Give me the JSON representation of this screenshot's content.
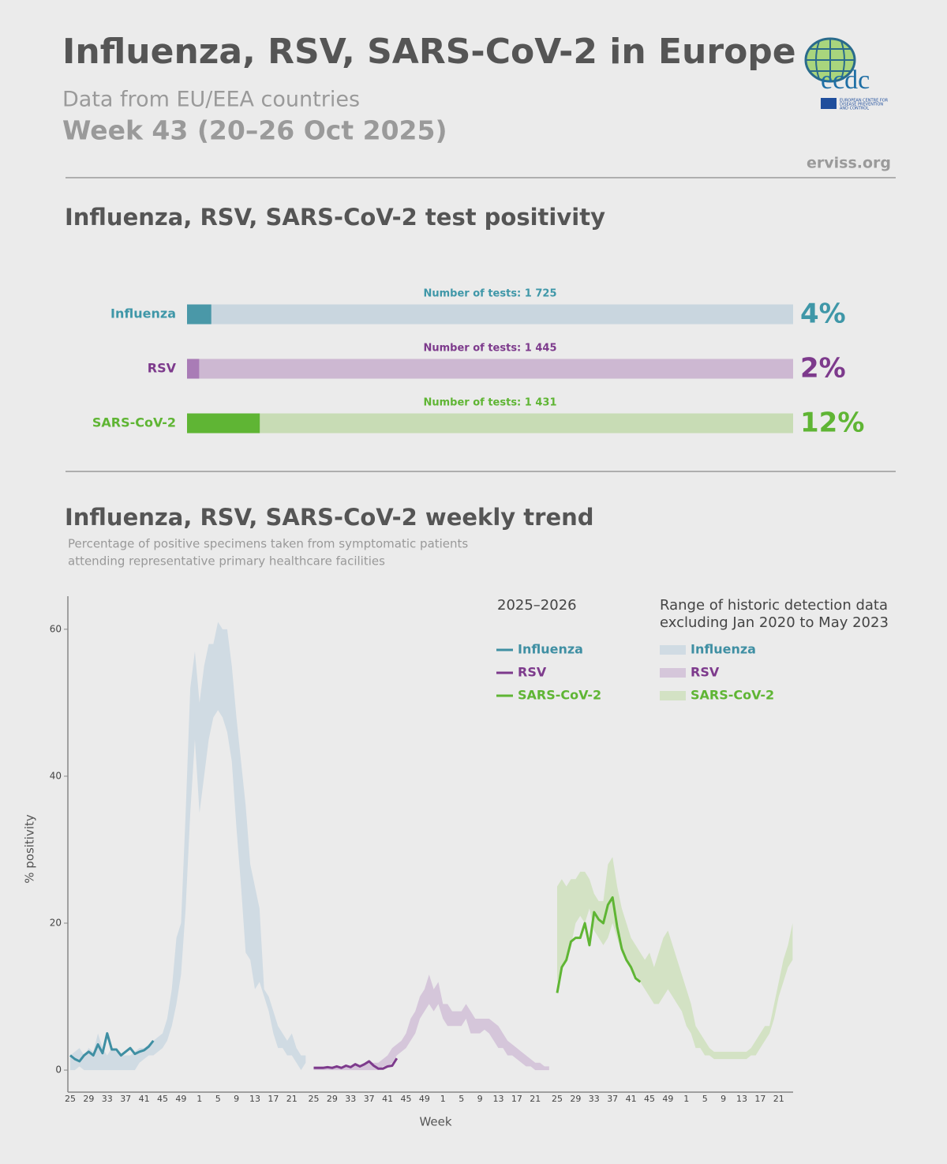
{
  "header": {
    "title": "Influenza, RSV, SARS-CoV-2 in Europe",
    "subtitle": "Data from EU/EEA countries",
    "week": "Week 43 (20–26 Oct 2025)",
    "source": "erviss.org",
    "logo": {
      "name": "ecdc",
      "text": [
        "EUROPEAN CENTRE FOR",
        "DISEASE PREVENTION",
        "AND CONTROL"
      ]
    }
  },
  "chart_data": [
    {
      "type": "hbar",
      "title": "Influenza, RSV, SARS-CoV-2 test positivity",
      "categories": [
        "Influenza",
        "RSV",
        "SARS-CoV-2"
      ],
      "values": [
        4,
        2,
        12
      ],
      "value_labels": [
        "4%",
        "2%",
        "12%"
      ],
      "test_labels": [
        "Number of tests: 1 725",
        "Number of tests: 1 445",
        "Number of tests: 1 431"
      ],
      "colors": [
        "#4a98a8",
        "#a97cb6",
        "#5fb534"
      ],
      "label_colors": [
        "#3f97a8",
        "#7d3a8c",
        "#5fb534"
      ],
      "track_colors": [
        "#c9d6df",
        "#cdb8d2",
        "#c8dcb5"
      ],
      "xlim": [
        0,
        100
      ]
    },
    {
      "type": "trend",
      "title": "Influenza, RSV, SARS-CoV-2 weekly trend",
      "subtitle": [
        "Percentage of positive specimens taken from symptomatic patients",
        "attending representative primary healthcare facilities"
      ],
      "ylabel": "% positivity",
      "xlabel": "Week",
      "legend_titles": [
        [
          "2025–2026"
        ],
        [
          "Range of historic detection data",
          "excluding Jan 2020 to May 2023"
        ]
      ],
      "categories": [
        "25",
        null,
        null,
        null,
        "29",
        null,
        null,
        null,
        "33",
        null,
        null,
        null,
        "37",
        null,
        null,
        null,
        "41",
        null,
        null,
        null,
        "45",
        null,
        null,
        null,
        "49",
        null,
        null,
        null,
        "1",
        null,
        null,
        null,
        "5",
        null,
        null,
        null,
        "9",
        null,
        null,
        null,
        "13",
        null,
        null,
        null,
        "17",
        null,
        null,
        null,
        "21",
        null,
        null,
        null
      ],
      "ylim": [
        -3,
        64.5
      ],
      "yticks": [
        0,
        20,
        40,
        60
      ],
      "grid": false,
      "series": [
        {
          "name": "Influenza",
          "color": "#3f8fa3",
          "range_color": "#d0dbe3",
          "values": [
            2,
            1.5,
            1.2,
            2,
            2.5,
            2,
            3.5,
            2.3,
            5,
            2.8,
            2.8,
            2,
            2.5,
            3,
            2.2,
            2.5,
            2.7,
            3.2,
            4,
            null,
            null,
            null,
            null,
            null,
            null,
            null,
            null,
            null,
            null,
            null,
            null,
            null,
            null,
            null,
            null,
            null,
            null,
            null,
            null,
            null,
            null,
            null,
            null,
            null,
            null,
            null,
            null,
            null,
            null,
            null,
            null,
            null
          ],
          "lower": [
            0,
            0,
            0.5,
            0,
            0,
            0,
            0,
            0,
            0,
            0,
            0,
            0,
            0,
            0,
            0,
            1,
            1.5,
            2,
            2,
            2.5,
            3,
            4,
            6,
            9,
            13,
            22,
            35,
            45,
            35,
            40,
            45,
            48,
            49,
            48,
            46,
            42,
            33,
            25,
            16,
            15,
            11,
            12,
            10,
            8,
            5,
            3,
            3,
            2,
            2,
            1,
            0,
            1
          ],
          "upper": [
            2,
            2.5,
            3,
            2,
            3,
            2.5,
            5,
            3,
            2,
            3,
            2.5,
            2,
            2,
            2,
            2.5,
            3,
            3,
            3.5,
            4,
            4.5,
            5,
            7,
            11,
            18,
            20,
            35,
            52,
            57,
            50,
            55,
            58,
            58,
            61,
            60,
            60,
            55,
            48,
            42,
            36,
            28,
            25,
            22,
            11,
            10,
            8,
            6,
            5,
            4,
            5,
            3,
            2,
            2
          ]
        },
        {
          "name": "RSV",
          "color": "#7d3a8c",
          "range_color": "#d5c6da",
          "values": [
            0.3,
            0.3,
            0.3,
            0.4,
            0.3,
            0.5,
            0.3,
            0.6,
            0.4,
            0.8,
            0.5,
            0.8,
            1.2,
            0.6,
            0.2,
            0.2,
            0.5,
            0.6,
            1.6,
            null,
            null,
            null,
            null,
            null,
            null,
            null,
            null,
            null,
            null,
            null,
            null,
            null,
            null,
            null,
            null,
            null,
            null,
            null,
            null,
            null,
            null,
            null,
            null,
            null,
            null,
            null,
            null,
            null,
            null,
            null,
            null,
            null
          ],
          "lower": [
            0,
            0,
            0,
            0,
            0,
            0,
            0,
            0,
            0,
            0,
            0,
            0,
            0,
            0,
            0,
            0.5,
            0.5,
            1,
            2,
            2.5,
            3,
            4,
            5,
            7,
            8,
            9,
            8,
            9,
            7,
            6,
            6,
            6,
            6,
            7,
            5,
            5,
            5,
            5.5,
            5,
            4,
            3,
            3,
            2,
            2,
            1.5,
            1,
            0.5,
            0.5,
            0,
            0,
            0,
            0
          ],
          "upper": [
            0.5,
            0.5,
            0.5,
            0.5,
            0.5,
            0.5,
            0.5,
            0.5,
            0.5,
            0.6,
            0.7,
            0.8,
            1,
            1,
            1,
            1.5,
            2,
            3,
            3.5,
            4,
            5,
            7,
            8,
            10,
            11,
            13,
            11,
            12,
            9,
            9,
            8,
            8,
            8,
            9,
            8,
            7,
            7,
            7,
            7,
            6.5,
            6,
            5,
            4,
            3.5,
            3,
            2.5,
            2,
            1.5,
            1,
            1,
            0.5,
            0.5
          ]
        },
        {
          "name": "SARS-CoV-2",
          "color": "#5fb534",
          "range_color": "#d3e2c4",
          "values": [
            10.5,
            14,
            15,
            17.5,
            18,
            18,
            20,
            17,
            21.5,
            20.5,
            20,
            22.5,
            23.5,
            19.5,
            16.5,
            15,
            14,
            12.5,
            12,
            null,
            null,
            null,
            null,
            null,
            null,
            null,
            null,
            null,
            null,
            null,
            null,
            null,
            null,
            null,
            null,
            null,
            null,
            null,
            null,
            null,
            null,
            null,
            null,
            null,
            null,
            null,
            null,
            null,
            null,
            null,
            null,
            null
          ],
          "lower": [
            12,
            14,
            15,
            17,
            20,
            21,
            20,
            22,
            19,
            18,
            17,
            18,
            20,
            18,
            16,
            15,
            14,
            13,
            12,
            11,
            10,
            9,
            9,
            10,
            11,
            10,
            9,
            8,
            6,
            5,
            3,
            3,
            2,
            2,
            1.5,
            1.5,
            1.5,
            1.5,
            1.5,
            1.5,
            1.5,
            1.5,
            2,
            2,
            3,
            4,
            5,
            7,
            10,
            12,
            14,
            15
          ],
          "upper": [
            25,
            26,
            25,
            26,
            26,
            27,
            27,
            26,
            24,
            23,
            23,
            28,
            29,
            25,
            22,
            20,
            18,
            17,
            16,
            15,
            16,
            14,
            16,
            18,
            19,
            17,
            15,
            13,
            11,
            9,
            6,
            5,
            4,
            3,
            2.5,
            2.5,
            2.5,
            2.5,
            2.5,
            2.5,
            2.5,
            2.5,
            3,
            4,
            5,
            6,
            6,
            9,
            12,
            15,
            17,
            20
          ]
        }
      ]
    }
  ]
}
